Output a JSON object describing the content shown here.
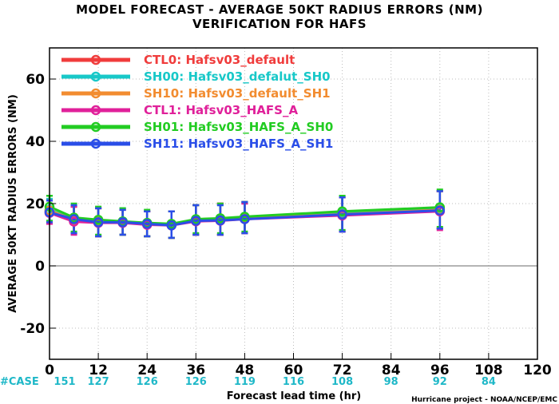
{
  "title": "MODEL FORECAST - AVERAGE 50KT RADIUS ERRORS (NM)",
  "subtitle": "VERIFICATION FOR HAFS",
  "credit": "Hurricane project - NOAA/NCEP/EMC",
  "case_label": "#CASE",
  "colors": {
    "case_text": "#1fb8c8",
    "zero_line": "#888888",
    "grid": "#bbbbbb"
  },
  "chart_data": {
    "type": "line",
    "title": "MODEL FORECAST - AVERAGE 50KT RADIUS ERRORS (NM)",
    "xlabel": "Forecast lead time (hr)",
    "ylabel": "AVERAGE 50KT RADIUS ERRORS (NM)",
    "xlim": [
      0,
      120
    ],
    "ylim": [
      -30,
      70
    ],
    "xticks": [
      0,
      12,
      24,
      36,
      48,
      60,
      72,
      84,
      96,
      108,
      120
    ],
    "yticks": [
      -20,
      0,
      20,
      40,
      60
    ],
    "grid": true,
    "legend_position": "top-left",
    "cases": [
      {
        "x": 0,
        "n": 151
      },
      {
        "x": 12,
        "n": 127
      },
      {
        "x": 24,
        "n": 126
      },
      {
        "x": 36,
        "n": 126
      },
      {
        "x": 48,
        "n": 119
      },
      {
        "x": 60,
        "n": 116
      },
      {
        "x": 72,
        "n": 108
      },
      {
        "x": 84,
        "n": 98
      },
      {
        "x": 96,
        "n": 92
      },
      {
        "x": 108,
        "n": 84
      }
    ],
    "x": [
      0,
      6,
      12,
      18,
      24,
      30,
      36,
      42,
      48,
      72,
      96
    ],
    "series": [
      {
        "name": "CTL0: Hafsv03_default",
        "color": "#f03c3c",
        "values": [
          17.5,
          14.5,
          14.0,
          14.0,
          13.5,
          13.2,
          14.5,
          14.8,
          15.3,
          16.8,
          18.0
        ],
        "err_lo": [
          14.0,
          10.5,
          9.5,
          10.0,
          9.5,
          9.0,
          10.0,
          10.0,
          10.5,
          11.0,
          12.0
        ],
        "err_hi": [
          21.0,
          19.0,
          18.5,
          18.0,
          17.5,
          17.5,
          19.5,
          20.0,
          20.5,
          22.0,
          24.0
        ]
      },
      {
        "name": "SH00: Hafsv03_defalut_SH0",
        "color": "#18c8c8",
        "values": [
          18.0,
          15.0,
          14.5,
          14.0,
          13.5,
          13.2,
          14.8,
          15.0,
          15.5,
          17.0,
          18.2
        ],
        "err_lo": [
          14.0,
          10.5,
          9.5,
          10.0,
          9.5,
          9.0,
          10.0,
          10.0,
          10.5,
          11.5,
          12.0
        ],
        "err_hi": [
          21.5,
          19.5,
          18.5,
          18.5,
          17.5,
          17.5,
          19.5,
          19.5,
          20.5,
          22.5,
          24.0
        ]
      },
      {
        "name": "SH10: Hafsv03_default_SH1",
        "color": "#f28c30",
        "values": [
          17.8,
          14.8,
          14.2,
          14.0,
          13.4,
          13.0,
          14.6,
          14.8,
          15.2,
          16.6,
          18.0
        ],
        "err_lo": [
          14.0,
          10.5,
          9.5,
          10.0,
          9.5,
          9.0,
          10.0,
          10.0,
          10.5,
          11.0,
          12.0
        ],
        "err_hi": [
          21.0,
          19.0,
          18.5,
          18.0,
          17.5,
          17.5,
          19.5,
          20.0,
          20.5,
          22.0,
          24.0
        ]
      },
      {
        "name": "CTL1: Hafsv03_HAFS_A",
        "color": "#e0209a",
        "values": [
          17.0,
          14.2,
          13.8,
          13.8,
          13.2,
          13.0,
          14.3,
          14.5,
          15.0,
          16.2,
          17.5
        ],
        "err_lo": [
          13.5,
          10.0,
          9.5,
          10.0,
          9.5,
          9.0,
          10.0,
          10.0,
          10.5,
          11.0,
          11.5
        ],
        "err_hi": [
          21.0,
          19.0,
          18.5,
          18.0,
          17.5,
          17.5,
          19.5,
          20.0,
          20.0,
          22.0,
          24.0
        ]
      },
      {
        "name": "SH01: Hafsv03_HAFS_A_SH0",
        "color": "#22cc22",
        "values": [
          19.0,
          15.5,
          14.8,
          14.3,
          13.8,
          13.5,
          15.0,
          15.3,
          15.8,
          17.5,
          18.8
        ],
        "err_lo": [
          14.5,
          11.0,
          10.0,
          10.0,
          9.5,
          9.0,
          10.5,
          10.5,
          11.0,
          11.5,
          12.5
        ],
        "err_hi": [
          22.5,
          20.0,
          19.0,
          18.5,
          18.0,
          17.5,
          19.5,
          20.0,
          20.5,
          22.5,
          24.5
        ]
      },
      {
        "name": "SH11: Hafsv03_HAFS_A_SH1",
        "color": "#2a4ee8",
        "values": [
          17.2,
          15.0,
          14.0,
          14.0,
          13.5,
          13.0,
          14.5,
          14.6,
          15.0,
          16.5,
          17.8
        ],
        "err_lo": [
          14.0,
          10.5,
          9.5,
          10.0,
          9.5,
          9.0,
          10.0,
          10.0,
          10.5,
          11.0,
          12.0
        ],
        "err_hi": [
          21.0,
          19.5,
          18.5,
          18.0,
          17.5,
          17.5,
          19.5,
          19.5,
          20.5,
          22.0,
          24.0
        ]
      }
    ]
  }
}
